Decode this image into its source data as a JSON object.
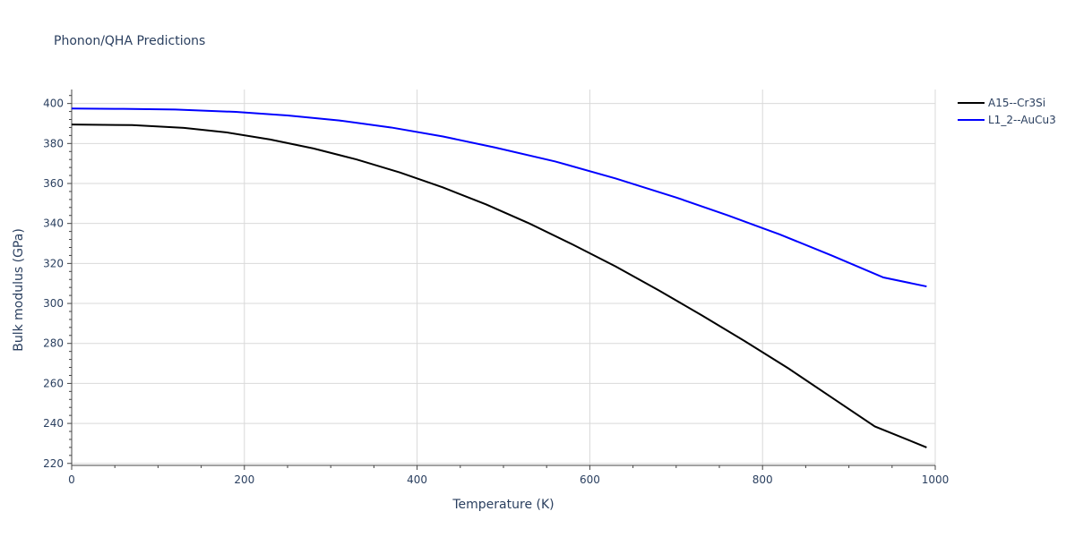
{
  "chart_data": {
    "type": "line",
    "title": "Phonon/QHA Predictions",
    "xlabel": "Temperature (K)",
    "ylabel": "Bulk modulus (GPa)",
    "xlim": [
      0,
      1000
    ],
    "ylim": [
      219,
      407
    ],
    "x_ticks": [
      0,
      200,
      400,
      600,
      800,
      1000
    ],
    "y_ticks": [
      220,
      240,
      260,
      280,
      300,
      320,
      340,
      360,
      380,
      400
    ],
    "grid": true,
    "legend_position": "top-right",
    "series": [
      {
        "name": "A15--Cr3Si",
        "color": "#000000",
        "x": [
          0,
          70,
          130,
          180,
          230,
          280,
          330,
          380,
          430,
          480,
          530,
          580,
          630,
          680,
          730,
          780,
          830,
          880,
          930,
          990
        ],
        "y": [
          389.5,
          389.2,
          387.8,
          385.5,
          382.0,
          377.5,
          372.0,
          365.5,
          358.0,
          349.5,
          340.0,
          329.5,
          318.5,
          306.5,
          294.0,
          281.0,
          267.5,
          253.0,
          238.5,
          228.0
        ]
      },
      {
        "name": "L1_2--AuCu3",
        "color": "#0000ff",
        "x": [
          0,
          60,
          120,
          190,
          250,
          310,
          370,
          430,
          490,
          560,
          630,
          700,
          760,
          820,
          880,
          940,
          990
        ],
        "y": [
          397.5,
          397.3,
          397.0,
          395.8,
          394.0,
          391.5,
          388.0,
          383.5,
          378.0,
          371.0,
          362.5,
          353.0,
          344.0,
          334.5,
          324.0,
          313.0,
          308.5
        ]
      }
    ]
  }
}
